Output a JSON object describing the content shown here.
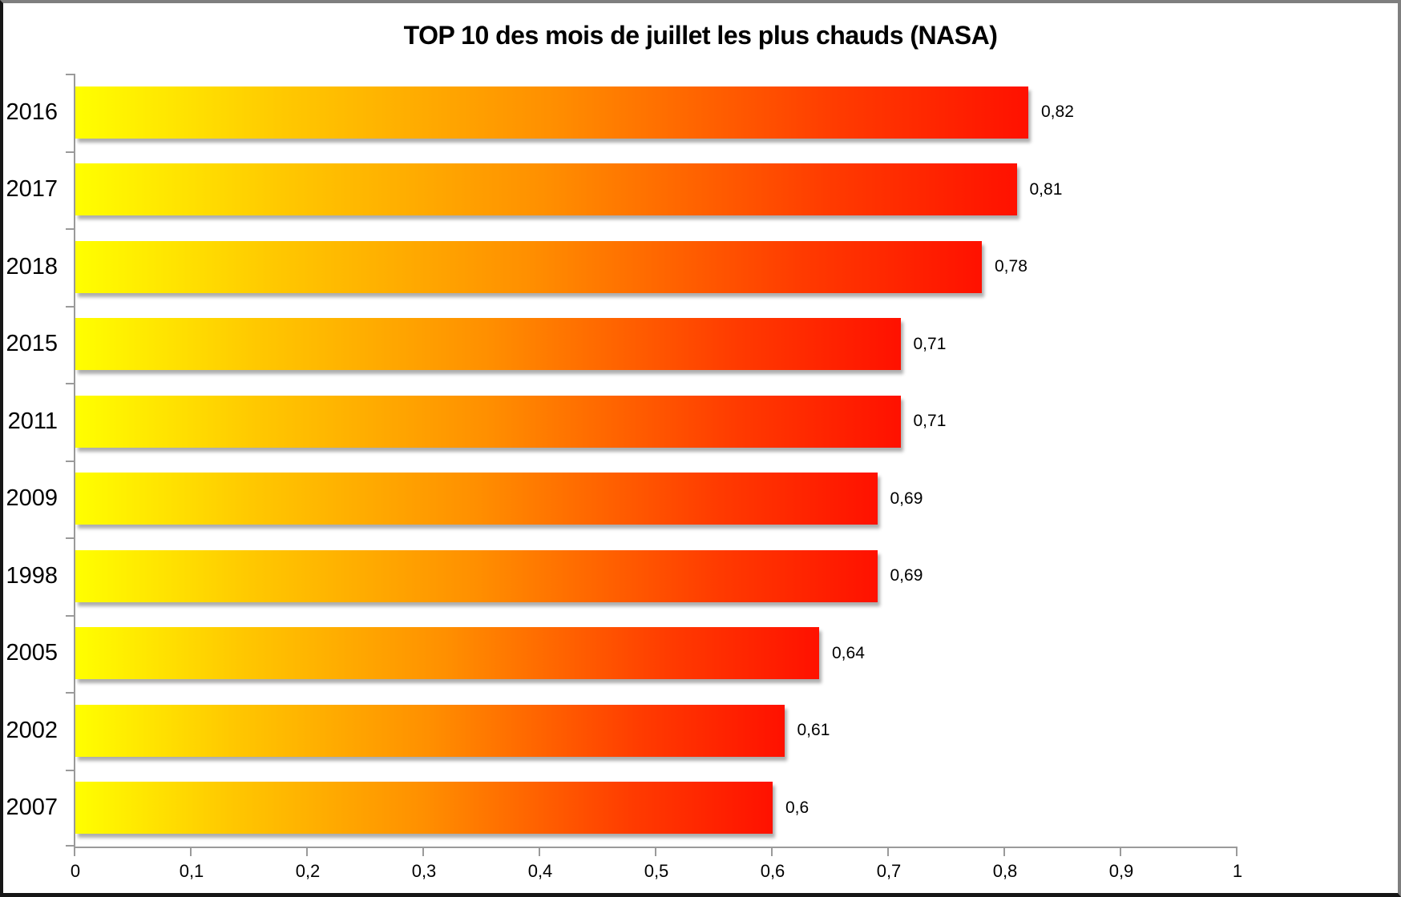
{
  "chart_data": {
    "type": "bar",
    "orientation": "horizontal",
    "title": "TOP 10 des mois de juillet les plus chauds (NASA)",
    "categories": [
      "2016",
      "2017",
      "2018",
      "2015",
      "2011",
      "2009",
      "1998",
      "2005",
      "2002",
      "2007"
    ],
    "values": [
      0.82,
      0.81,
      0.78,
      0.71,
      0.71,
      0.69,
      0.69,
      0.64,
      0.61,
      0.6
    ],
    "value_labels": [
      "0,82",
      "0,81",
      "0,78",
      "0,71",
      "0,71",
      "0,69",
      "0,69",
      "0,64",
      "0,61",
      "0,6"
    ],
    "xlabel": "",
    "ylabel": "",
    "xlim": [
      0,
      1
    ],
    "x_tick_values": [
      0,
      0.1,
      0.2,
      0.3,
      0.4,
      0.5,
      0.6,
      0.7,
      0.8,
      0.9,
      1
    ],
    "x_tick_labels": [
      "0",
      "0,1",
      "0,2",
      "0,3",
      "0,4",
      "0,5",
      "0,6",
      "0,7",
      "0,8",
      "0,9",
      "1"
    ],
    "grid": false,
    "legend": null,
    "bar_gradient": [
      "#FFFF00",
      "#FFC800",
      "#FF8F00",
      "#FF3B00",
      "#FF1100"
    ],
    "bar_gradient_stops": [
      0,
      22,
      50,
      80,
      100
    ],
    "axis_color": "#9a9a9a",
    "label_color": "#000000",
    "background_color": "#FFFFFF"
  }
}
